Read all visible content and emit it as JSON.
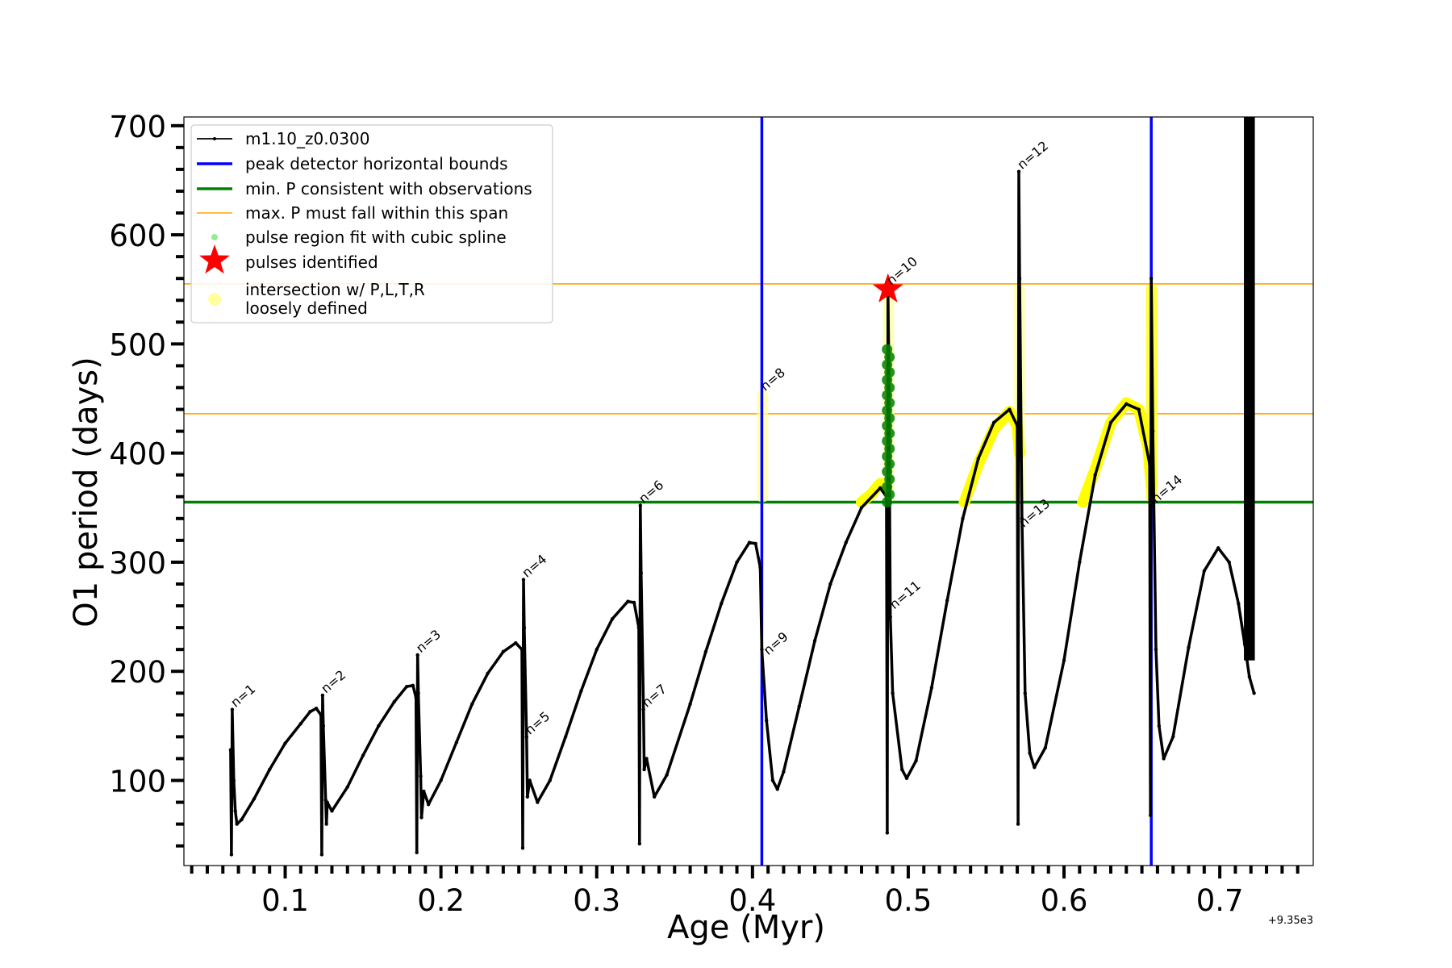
{
  "chart_data": {
    "type": "line",
    "xlabel": "Age (Myr)",
    "ylabel": "O1 period (days)",
    "x_offset_label": "+9.35e3",
    "xlim": [
      0.035,
      0.76
    ],
    "ylim": [
      22,
      708
    ],
    "x_ticks": [
      0.1,
      0.2,
      0.3,
      0.4,
      0.5,
      0.6,
      0.7
    ],
    "x_tick_labels": [
      "0.1",
      "0.2",
      "0.3",
      "0.4",
      "0.5",
      "0.6",
      "0.7"
    ],
    "y_ticks": [
      100,
      200,
      300,
      400,
      500,
      600,
      700
    ],
    "y_tick_labels": [
      "100",
      "200",
      "300",
      "400",
      "500",
      "600",
      "700"
    ],
    "legend": {
      "position": "upper-left",
      "entries": [
        {
          "label": "m1.10_z0.0300",
          "kind": "line-dot",
          "color": "#000000"
        },
        {
          "label": "peak detector horizontal bounds",
          "kind": "line",
          "color": "#0000ff"
        },
        {
          "label": "min. P consistent with observations",
          "kind": "line",
          "color": "#008000"
        },
        {
          "label": "max. P must fall within this span",
          "kind": "thin-line",
          "color": "#ffa500"
        },
        {
          "label": "pulse region fit with cubic spline",
          "kind": "dot",
          "color": "#90ee90"
        },
        {
          "label": "pulses identified",
          "kind": "star",
          "color": "#ff0000"
        },
        {
          "label": "intersection w/ P,L,T,R",
          "label2": "loosely defined",
          "kind": "big-dot",
          "color": "#ffff9e"
        }
      ]
    },
    "vertical_lines": [
      0.406,
      0.656
    ],
    "min_period_line": 355,
    "max_period_lines": [
      436,
      555
    ],
    "track_points": [
      [
        0.065,
        128
      ],
      [
        0.0655,
        32
      ],
      [
        0.066,
        165
      ],
      [
        0.067,
        100
      ],
      [
        0.068,
        72
      ],
      [
        0.069,
        60
      ],
      [
        0.072,
        64
      ],
      [
        0.08,
        83
      ],
      [
        0.09,
        110
      ],
      [
        0.1,
        134
      ],
      [
        0.11,
        152
      ],
      [
        0.116,
        163
      ],
      [
        0.12,
        166
      ],
      [
        0.123,
        160
      ],
      [
        0.1235,
        32
      ],
      [
        0.124,
        178
      ],
      [
        0.1245,
        150
      ],
      [
        0.126,
        82
      ],
      [
        0.1265,
        60
      ],
      [
        0.127,
        80
      ],
      [
        0.13,
        72
      ],
      [
        0.14,
        94
      ],
      [
        0.15,
        123
      ],
      [
        0.16,
        150
      ],
      [
        0.17,
        172
      ],
      [
        0.178,
        186
      ],
      [
        0.182,
        187
      ],
      [
        0.184,
        176
      ],
      [
        0.1845,
        34
      ],
      [
        0.185,
        215
      ],
      [
        0.1855,
        180
      ],
      [
        0.187,
        104
      ],
      [
        0.1875,
        66
      ],
      [
        0.189,
        90
      ],
      [
        0.192,
        78
      ],
      [
        0.2,
        100
      ],
      [
        0.21,
        135
      ],
      [
        0.22,
        170
      ],
      [
        0.23,
        198
      ],
      [
        0.24,
        218
      ],
      [
        0.248,
        226
      ],
      [
        0.252,
        220
      ],
      [
        0.2525,
        38
      ],
      [
        0.253,
        284
      ],
      [
        0.2535,
        240
      ],
      [
        0.255,
        140
      ],
      [
        0.2555,
        85
      ],
      [
        0.257,
        100
      ],
      [
        0.262,
        80
      ],
      [
        0.27,
        100
      ],
      [
        0.28,
        140
      ],
      [
        0.29,
        182
      ],
      [
        0.3,
        220
      ],
      [
        0.31,
        248
      ],
      [
        0.32,
        264
      ],
      [
        0.324,
        263
      ],
      [
        0.327,
        240
      ],
      [
        0.3275,
        42
      ],
      [
        0.328,
        352
      ],
      [
        0.3285,
        290
      ],
      [
        0.33,
        165
      ],
      [
        0.3305,
        110
      ],
      [
        0.332,
        120
      ],
      [
        0.337,
        85
      ],
      [
        0.345,
        105
      ],
      [
        0.36,
        170
      ],
      [
        0.37,
        218
      ],
      [
        0.38,
        262
      ],
      [
        0.39,
        300
      ],
      [
        0.398,
        318
      ],
      [
        0.402,
        317
      ],
      [
        0.405,
        295
      ],
      [
        0.406,
        220
      ],
      [
        0.409,
        155
      ],
      [
        0.413,
        100
      ],
      [
        0.416,
        92
      ],
      [
        0.42,
        108
      ],
      [
        0.43,
        168
      ],
      [
        0.44,
        228
      ],
      [
        0.45,
        280
      ],
      [
        0.46,
        318
      ],
      [
        0.47,
        350
      ],
      [
        0.482,
        368
      ],
      [
        0.486,
        360
      ],
      [
        0.4865,
        52
      ],
      [
        0.487,
        550
      ],
      [
        0.4875,
        480
      ],
      [
        0.4885,
        250
      ],
      [
        0.49,
        180
      ],
      [
        0.496,
        110
      ],
      [
        0.499,
        102
      ],
      [
        0.505,
        118
      ],
      [
        0.515,
        185
      ],
      [
        0.525,
        265
      ],
      [
        0.535,
        340
      ],
      [
        0.545,
        395
      ],
      [
        0.555,
        428
      ],
      [
        0.565,
        440
      ],
      [
        0.57,
        425
      ],
      [
        0.5705,
        60
      ],
      [
        0.571,
        658
      ],
      [
        0.5715,
        560
      ],
      [
        0.573,
        340
      ],
      [
        0.575,
        180
      ],
      [
        0.578,
        125
      ],
      [
        0.581,
        112
      ],
      [
        0.588,
        130
      ],
      [
        0.6,
        210
      ],
      [
        0.61,
        300
      ],
      [
        0.62,
        380
      ],
      [
        0.63,
        428
      ],
      [
        0.64,
        445
      ],
      [
        0.648,
        440
      ],
      [
        0.655,
        390
      ],
      [
        0.6555,
        68
      ],
      [
        0.656,
        560
      ],
      [
        0.657,
        420
      ],
      [
        0.659,
        220
      ],
      [
        0.661,
        150
      ],
      [
        0.664,
        120
      ],
      [
        0.67,
        140
      ],
      [
        0.68,
        222
      ],
      [
        0.69,
        292
      ],
      [
        0.699,
        313
      ],
      [
        0.706,
        300
      ],
      [
        0.712,
        262
      ],
      [
        0.716,
        225
      ],
      [
        0.719,
        195
      ],
      [
        0.722,
        180
      ]
    ],
    "track_spike": {
      "x": [
        0.7155,
        0.7225
      ],
      "y_min": 210,
      "y_max": 708
    },
    "pulse_labels": [
      {
        "text": "n=1",
        "x": 0.066,
        "y": 165
      },
      {
        "text": "n=2",
        "x": 0.124,
        "y": 178
      },
      {
        "text": "n=3",
        "x": 0.185,
        "y": 215
      },
      {
        "text": "n=4",
        "x": 0.253,
        "y": 284
      },
      {
        "text": "n=5",
        "x": 0.255,
        "y": 140
      },
      {
        "text": "n=6",
        "x": 0.328,
        "y": 352
      },
      {
        "text": "n=7",
        "x": 0.33,
        "y": 165
      },
      {
        "text": "n=8",
        "x": 0.406,
        "y": 455
      },
      {
        "text": "n=9",
        "x": 0.408,
        "y": 213
      },
      {
        "text": "n=10",
        "x": 0.487,
        "y": 552
      },
      {
        "text": "n=11",
        "x": 0.489,
        "y": 255
      },
      {
        "text": "n=12",
        "x": 0.571,
        "y": 658
      },
      {
        "text": "n=13",
        "x": 0.572,
        "y": 330
      },
      {
        "text": "n=14",
        "x": 0.657,
        "y": 352
      }
    ],
    "highlight_regions": [
      {
        "x0": 0.406,
        "x1": 0.407,
        "y0": 355,
        "y1": 458,
        "style": "vertical-pale"
      },
      {
        "x0": 0.487,
        "x1": 0.4875,
        "y0": 355,
        "y1": 548,
        "style": "vertical-pale"
      },
      {
        "x0": 0.571,
        "x1": 0.5715,
        "y0": 355,
        "y1": 555,
        "style": "vertical-pale"
      },
      {
        "x0": 0.656,
        "x1": 0.6565,
        "y0": 355,
        "y1": 555,
        "style": "vertical-yellow"
      }
    ],
    "yellow_arcs": [
      {
        "points": [
          [
            0.47,
            355
          ],
          [
            0.476,
            362
          ],
          [
            0.482,
            372
          ],
          [
            0.486,
            370
          ]
        ]
      },
      {
        "points": [
          [
            0.536,
            355
          ],
          [
            0.545,
            390
          ],
          [
            0.555,
            422
          ],
          [
            0.565,
            438
          ],
          [
            0.57,
            425
          ],
          [
            0.5715,
            400
          ]
        ]
      },
      {
        "points": [
          [
            0.612,
            355
          ],
          [
            0.62,
            385
          ],
          [
            0.63,
            428
          ],
          [
            0.64,
            446
          ],
          [
            0.648,
            440
          ],
          [
            0.654,
            405
          ],
          [
            0.656,
            370
          ]
        ]
      }
    ],
    "green_points": {
      "x": 0.4872,
      "y_range": [
        355,
        495
      ]
    },
    "star_marker": {
      "x": 0.487,
      "y": 550
    }
  }
}
